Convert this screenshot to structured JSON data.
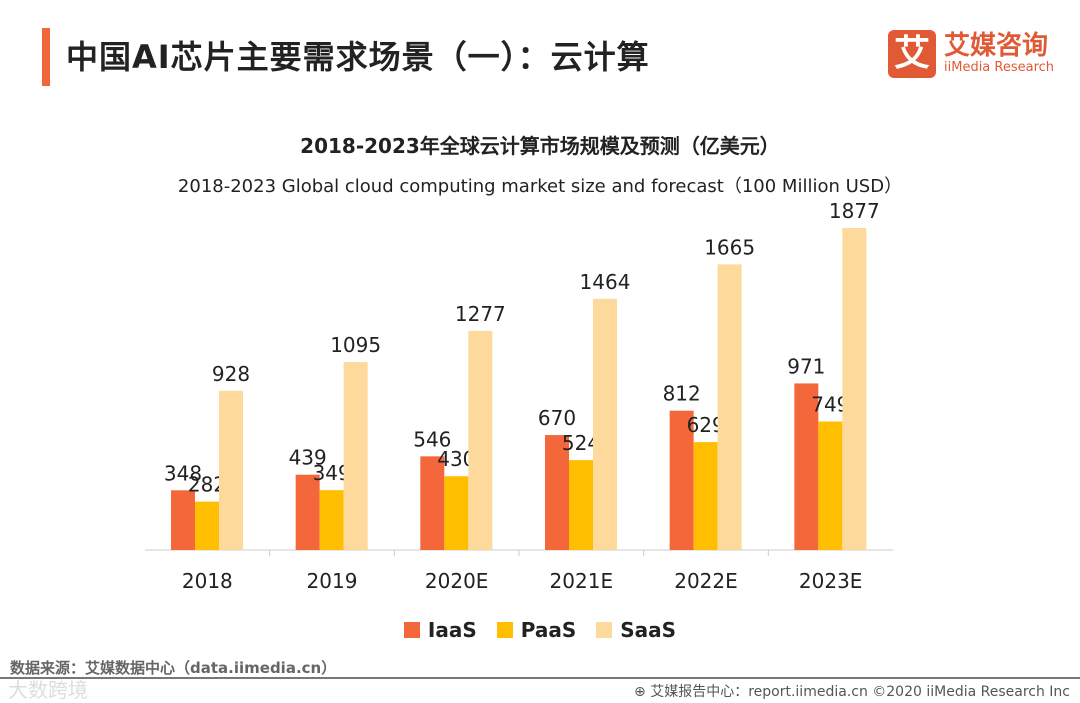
{
  "header": {
    "title": "中国AI芯片主要需求场景（一）：云计算",
    "logo_mark": "艾",
    "logo_cn": "艾媒咨询",
    "logo_en": "iiMedia Research"
  },
  "chart_data": {
    "type": "bar",
    "title": "2018-2023年全球云计算市场规模及预测（亿美元）",
    "subtitle": "2018-2023 Global cloud computing market size and forecast（100 Million USD）",
    "categories": [
      "2018",
      "2019",
      "2020E",
      "2021E",
      "2022E",
      "2023E"
    ],
    "series": [
      {
        "name": "IaaS",
        "color": "#f4673a",
        "values": [
          348,
          439,
          546,
          670,
          812,
          971
        ]
      },
      {
        "name": "PaaS",
        "color": "#ffbf00",
        "values": [
          282,
          349,
          430,
          524,
          629,
          749
        ]
      },
      {
        "name": "SaaS",
        "color": "#fdd99b",
        "values": [
          928,
          1095,
          1277,
          1464,
          1665,
          1877
        ]
      }
    ],
    "ylim": [
      0,
      1900
    ],
    "legend": "bottom",
    "grid": false
  },
  "footer": {
    "source": "数据来源：艾媒数据中心（data.iimedia.cn）",
    "credit": "艾媒报告中心：report.iimedia.cn   ©2020  iiMedia Research  Inc",
    "watermark": "大数跨境"
  }
}
